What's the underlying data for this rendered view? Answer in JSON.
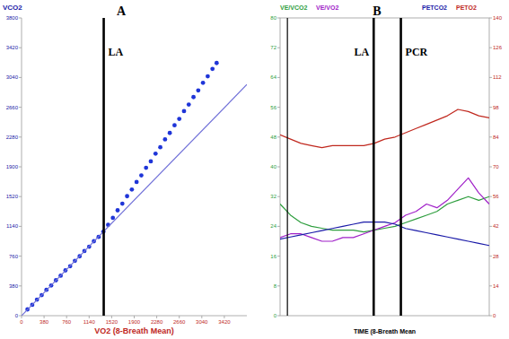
{
  "chart_data": [
    {
      "type": "scatter",
      "title": "A",
      "x_label": "VO2 (8-Breath Mean)",
      "y_label": "VCO2",
      "xlim": [
        0,
        3800
      ],
      "ylim": [
        0,
        3800
      ],
      "xticks": [
        0,
        380,
        760,
        1140,
        1520,
        1900,
        2280,
        2660,
        3040,
        3420
      ],
      "yticks": [
        0,
        380,
        760,
        1140,
        1520,
        1900,
        2280,
        2660,
        3040,
        3420,
        3800
      ],
      "series": [
        {
          "type": "scatter",
          "color": "#1f35d8",
          "x": [
            100,
            180,
            260,
            340,
            420,
            500,
            580,
            660,
            740,
            820,
            900,
            980,
            1060,
            1140,
            1220,
            1300,
            1380,
            1460,
            1540,
            1620,
            1700,
            1780,
            1860,
            1940,
            2020,
            2100,
            2180,
            2260,
            2340,
            2420,
            2500,
            2580,
            2660,
            2740,
            2820,
            2900,
            2980,
            3060,
            3140,
            3220,
            3290
          ],
          "values": [
            80,
            138,
            205,
            262,
            330,
            386,
            452,
            510,
            578,
            632,
            700,
            758,
            825,
            880,
            950,
            1005,
            1072,
            1160,
            1248,
            1345,
            1430,
            1525,
            1610,
            1706,
            1790,
            1888,
            1970,
            2068,
            2150,
            2250,
            2332,
            2430,
            2512,
            2610,
            2695,
            2790,
            2875,
            2972,
            3055,
            3150,
            3225
          ]
        },
        {
          "type": "line",
          "color": "#7070d8",
          "x": [
            0,
            3800
          ],
          "values": [
            0,
            2950
          ]
        }
      ],
      "annotations": [
        {
          "text": "LA",
          "x": 1386
        }
      ]
    },
    {
      "type": "line",
      "title": "B",
      "x_label": "TIME (8-Breath Mean",
      "tick_labels": "y",
      "xlim": [
        0,
        40
      ],
      "ylim": [
        0,
        80
      ],
      "yticks": [
        0,
        8,
        16,
        24,
        32,
        40,
        48,
        56,
        64,
        72,
        80
      ],
      "y2lim": [
        0,
        140
      ],
      "y2ticks": [
        0,
        14,
        28,
        42,
        56,
        70,
        84,
        98,
        112,
        126,
        140
      ],
      "x": [
        0,
        2,
        4,
        6,
        8,
        10,
        12,
        14,
        16,
        18,
        20,
        22,
        24,
        26,
        28,
        30,
        32,
        34,
        36,
        38,
        40
      ],
      "series": [
        {
          "name": "VE/VCO2",
          "color": "#2e9e3e",
          "values": [
            30,
            27,
            25,
            24,
            23.5,
            23,
            23,
            23,
            22.5,
            23,
            23.5,
            24,
            25,
            26,
            27,
            28,
            30,
            31,
            32,
            31,
            32
          ]
        },
        {
          "name": "VE/VO2",
          "color": "#a020c8",
          "values": [
            21,
            22,
            22,
            21,
            20,
            20,
            21,
            21,
            22,
            23,
            24,
            25,
            27,
            28,
            30,
            29,
            31,
            34,
            37,
            33,
            30
          ]
        },
        {
          "name": "PETCO2",
          "color": "#1a1aa8",
          "axis": "y2",
          "values": [
            36,
            37,
            38,
            39,
            40,
            41,
            42,
            43,
            44,
            44,
            44,
            43,
            41,
            40,
            39,
            38,
            37,
            36,
            35,
            34,
            33
          ]
        },
        {
          "name": "PETO2",
          "color": "#c0281e",
          "axis": "y2",
          "values": [
            85,
            83,
            81,
            80,
            79,
            80,
            80,
            80,
            80,
            81,
            83,
            84,
            86,
            88,
            90,
            92,
            94,
            97,
            96,
            94,
            93
          ]
        }
      ],
      "annotations": [
        {
          "x": 1.4
        },
        {
          "text": "LA",
          "x": 17.9
        },
        {
          "text": "PCR",
          "x": 23.1
        }
      ]
    }
  ]
}
